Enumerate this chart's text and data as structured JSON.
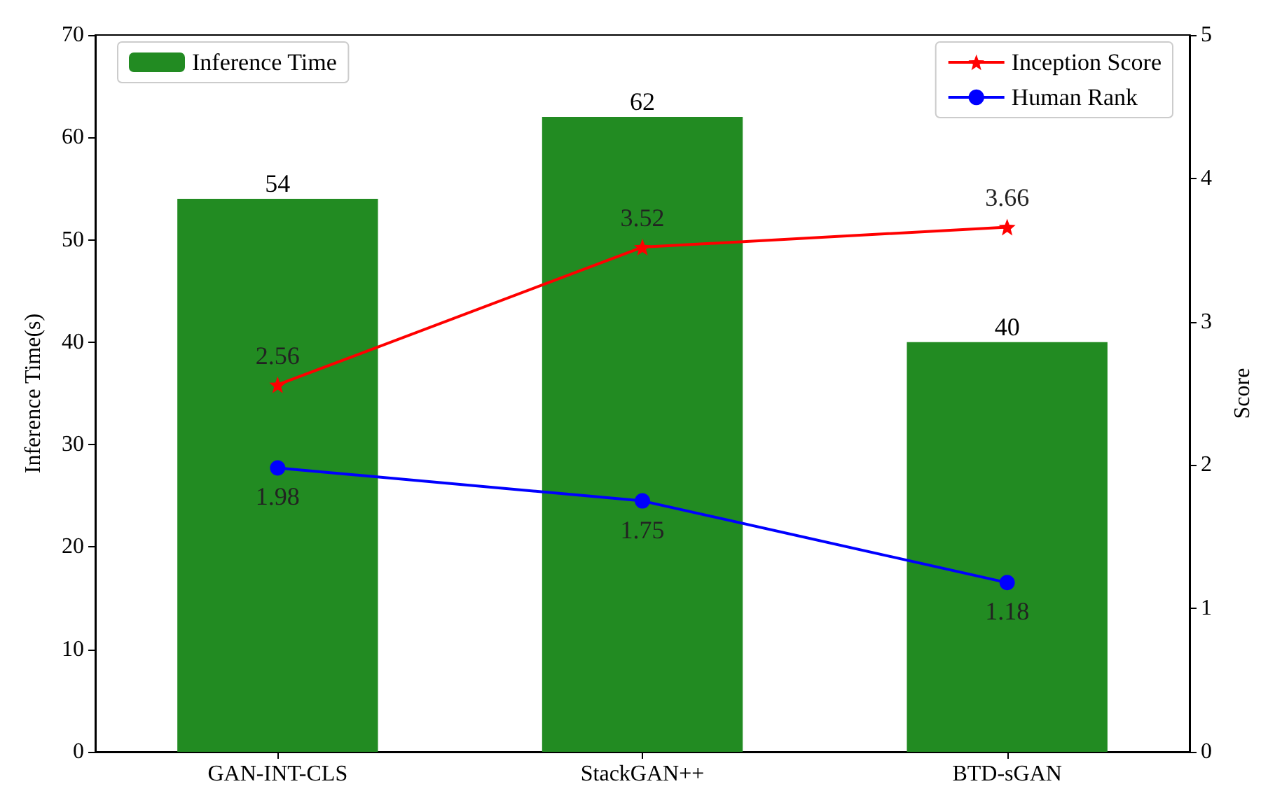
{
  "chart_data": {
    "type": "bar",
    "categories": [
      "GAN-INT-CLS",
      "StackGAN++",
      "BTD-sGAN"
    ],
    "ylabel": "Inference Time(s)",
    "y2label": "Score",
    "ylim": [
      0,
      70
    ],
    "yticks": [
      0,
      10,
      20,
      30,
      40,
      50,
      60,
      70
    ],
    "y2lim": [
      0,
      5
    ],
    "y2ticks": [
      0,
      1,
      2,
      3,
      4,
      5
    ],
    "data_labels": true,
    "legend": "top",
    "grid": false,
    "series": [
      {
        "name": "Inference Time",
        "color": "#228b22",
        "values": [
          54,
          62,
          40
        ]
      },
      {
        "name": "Inception Score",
        "type": "line",
        "axis": "y2",
        "marker": "star",
        "color": "#ff0000",
        "values": [
          2.56,
          3.52,
          3.66
        ]
      },
      {
        "name": "Human Rank",
        "type": "line",
        "axis": "y2",
        "marker": "circle",
        "color": "#0000ff",
        "values": [
          1.98,
          1.75,
          1.18
        ]
      }
    ]
  }
}
